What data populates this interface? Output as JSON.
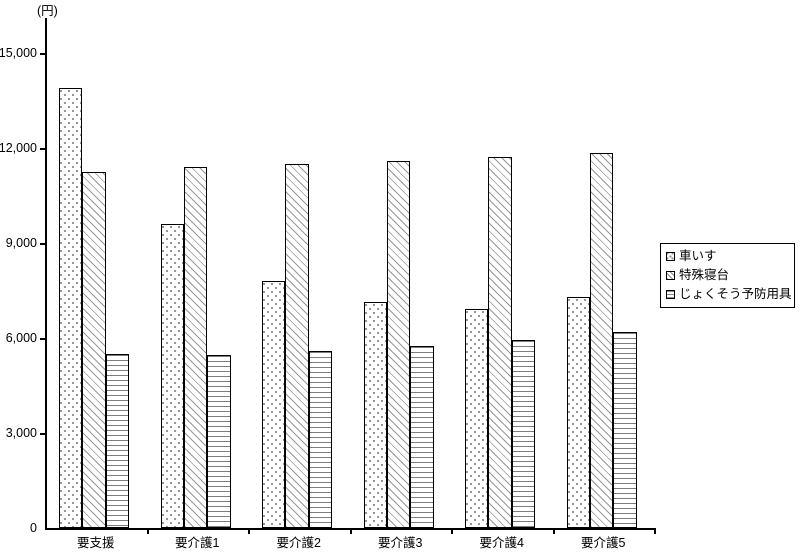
{
  "chart_data": {
    "type": "bar",
    "title": "",
    "unit_label": "(円)",
    "xlabel": "",
    "ylabel": "(円)",
    "categories": [
      "要支援",
      "要介護1",
      "要介護2",
      "要介護3",
      "要介護4",
      "要介護5"
    ],
    "series": [
      {
        "key": "wheelchair",
        "name": "車いす",
        "pattern": "dots",
        "values": [
          13900,
          9600,
          7800,
          7150,
          6900,
          7300
        ]
      },
      {
        "key": "special-bed",
        "name": "特殊寝台",
        "pattern": "diagonal",
        "values": [
          11250,
          11400,
          11500,
          11600,
          11700,
          11850
        ]
      },
      {
        "key": "bedsore-prevention-equipment",
        "name": "じょくそう予防用具",
        "pattern": "hlines",
        "values": [
          5500,
          5450,
          5600,
          5750,
          5950,
          6200
        ]
      }
    ],
    "ylim": [
      0,
      15000
    ],
    "ytick_interval": 3000,
    "ytick_labels": [
      "0",
      "3,000",
      "6,000",
      "9,000",
      "12,000",
      "15,000"
    ],
    "legend_position": "right",
    "grid": false
  },
  "colors": {
    "background": "#ffffff",
    "axis": "#000000",
    "bar_border": "#000000",
    "pattern_gray": "#8c8c8c",
    "text": "#000000"
  }
}
